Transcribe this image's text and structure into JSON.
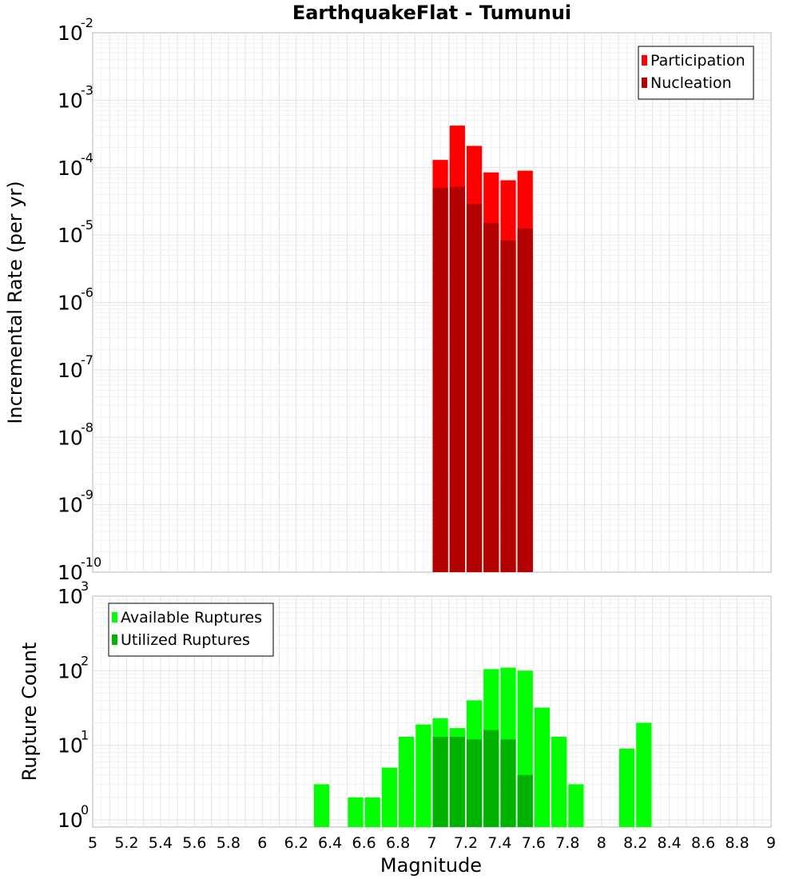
{
  "chart_data": [
    {
      "type": "bar",
      "title": "EarthquakeFlat - Tumunui",
      "xlabel": "",
      "ylabel": "Incremental Rate (per yr)",
      "xlim": [
        5,
        9
      ],
      "ylim": [
        1e-10,
        0.01
      ],
      "yscale": "log",
      "bin_width": 0.1,
      "grid": true,
      "legend_position": "top-right",
      "y_tick_exponents": [
        -10,
        -9,
        -8,
        -7,
        -6,
        -5,
        -4,
        -3,
        -2
      ],
      "y_tick_base": "10",
      "x": [
        7.05,
        7.15,
        7.25,
        7.35,
        7.45,
        7.55
      ],
      "series": [
        {
          "name": "Participation",
          "color": "#ff0000",
          "values": [
            0.00013,
            0.00042,
            0.00021,
            8.5e-05,
            6.5e-05,
            9e-05
          ]
        },
        {
          "name": "Nucleation",
          "color": "#b30000",
          "values": [
            5e-05,
            5.2e-05,
            2.9e-05,
            1.5e-05,
            8.3e-06,
            1.25e-05
          ]
        }
      ]
    },
    {
      "type": "bar",
      "title": "",
      "xlabel": "Magnitude",
      "ylabel": "Rupture Count",
      "xlim": [
        5,
        9
      ],
      "ylim": [
        0.8,
        1000
      ],
      "yscale": "log",
      "bin_width": 0.1,
      "grid": true,
      "legend_position": "top-left",
      "y_tick_exponents": [
        0,
        1,
        2,
        3
      ],
      "y_tick_base": "10",
      "x_ticks": [
        "5",
        "5.2",
        "5.4",
        "5.6",
        "5.8",
        "6",
        "6.2",
        "6.4",
        "6.6",
        "6.8",
        "7",
        "7.2",
        "7.4",
        "7.6",
        "7.8",
        "8",
        "8.2",
        "8.4",
        "8.6",
        "8.8",
        "9"
      ],
      "series": [
        {
          "name": "Available Ruptures",
          "color": "#00ff00",
          "x": [
            6.35,
            6.55,
            6.65,
            6.75,
            6.85,
            6.95,
            7.05,
            7.15,
            7.25,
            7.35,
            7.45,
            7.55,
            7.65,
            7.75,
            7.85,
            8.15,
            8.25
          ],
          "values": [
            3,
            2,
            2,
            5,
            13,
            19,
            23,
            17,
            40,
            105,
            110,
            100,
            32,
            13,
            3,
            9,
            20
          ]
        },
        {
          "name": "Utilized Ruptures",
          "color": "#00b300",
          "x": [
            7.05,
            7.15,
            7.25,
            7.35,
            7.45,
            7.55
          ],
          "values": [
            13,
            13,
            12,
            16,
            12,
            4
          ]
        }
      ]
    }
  ]
}
